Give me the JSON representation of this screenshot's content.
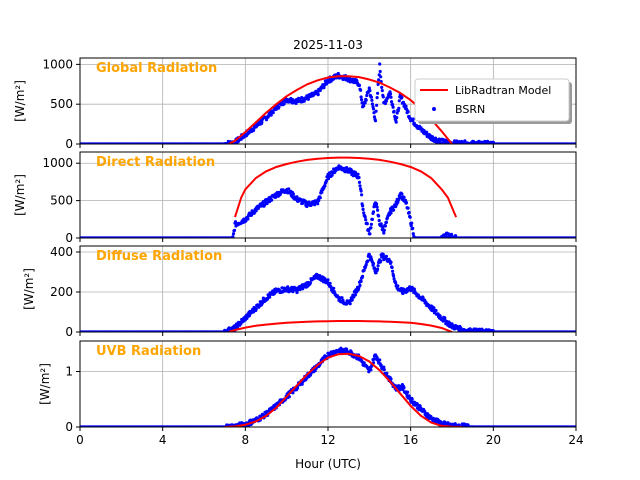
{
  "chart_data": {
    "type": "line",
    "title": "2025-11-03",
    "xlabel": "Hour (UTC)",
    "xlim": [
      0,
      24
    ],
    "xticks": [
      0,
      4,
      8,
      12,
      16,
      20,
      24
    ],
    "x_tick_labels": [
      "0",
      "4",
      "8",
      "12",
      "16",
      "20",
      "24"
    ],
    "grid": true,
    "legend": {
      "position": "top-right",
      "panel": "global",
      "entries": [
        "LibRadtran Model",
        "BSRN"
      ]
    },
    "colors": {
      "model": "#ff0000",
      "bsrn": "#0000ff",
      "panel_label": "#ffa500",
      "grid": "#b0b0b0"
    },
    "panels": [
      {
        "id": "global",
        "label": "Global Radiation",
        "ylabel": "[W/m²]",
        "ylim": [
          0,
          1080
        ],
        "yticks": [
          0,
          500,
          1000
        ],
        "y_tick_labels": [
          "0",
          "500",
          "1000"
        ],
        "model": {
          "name": "LibRadtran Model",
          "x": [
            7.2,
            7.5,
            8,
            8.5,
            9,
            9.5,
            10,
            10.5,
            11,
            11.5,
            12,
            12.5,
            13,
            13.5,
            14,
            14.5,
            15,
            15.5,
            16,
            16.5,
            17,
            17.5,
            18
          ],
          "y": [
            0,
            40,
            150,
            270,
            390,
            500,
            600,
            680,
            750,
            800,
            835,
            850,
            850,
            840,
            810,
            770,
            710,
            640,
            550,
            440,
            310,
            160,
            0
          ]
        },
        "bsrn": {
          "name": "BSRN",
          "x": [
            0,
            7,
            7.5,
            8,
            8.5,
            9,
            9.5,
            10,
            10.5,
            11,
            11.5,
            12,
            12.5,
            13,
            13.5,
            13.7,
            14,
            14.3,
            14.5,
            14.7,
            15,
            15.3,
            15.5,
            16,
            16.5,
            17,
            17.5,
            18,
            19,
            20,
            21,
            24
          ],
          "y": [
            0,
            0,
            20,
            120,
            220,
            330,
            460,
            560,
            540,
            580,
            640,
            800,
            860,
            820,
            760,
            450,
            700,
            300,
            980,
            500,
            650,
            280,
            600,
            320,
            180,
            80,
            30,
            10,
            5,
            0,
            0,
            0
          ]
        }
      },
      {
        "id": "direct",
        "label": "Direct Radiation",
        "ylabel": "[W/m²]",
        "ylim": [
          0,
          1150
        ],
        "yticks": [
          0,
          500,
          1000
        ],
        "y_tick_labels": [
          "0",
          "500",
          "1000"
        ],
        "model": {
          "name": "LibRadtran Model",
          "x": [
            7.5,
            7.8,
            8,
            8.5,
            9,
            9.5,
            10,
            10.5,
            11,
            11.5,
            12,
            12.5,
            13,
            13.5,
            14,
            14.5,
            15,
            15.5,
            16,
            16.5,
            17,
            17.5,
            17.8,
            18.2
          ],
          "y": [
            280,
            540,
            650,
            800,
            890,
            950,
            990,
            1020,
            1045,
            1060,
            1070,
            1075,
            1075,
            1070,
            1060,
            1045,
            1020,
            990,
            950,
            890,
            800,
            650,
            540,
            280
          ]
        },
        "bsrn": {
          "name": "BSRN",
          "x": [
            0,
            7.4,
            7.5,
            8,
            8.5,
            9,
            9.5,
            10,
            10.5,
            11,
            11.5,
            12,
            12.5,
            13,
            13.5,
            13.7,
            14,
            14.3,
            14.5,
            14.7,
            15,
            15.3,
            15.5,
            15.8,
            16.2,
            17,
            17.5,
            17.8,
            18.2,
            24
          ],
          "y": [
            0,
            0,
            180,
            250,
            380,
            480,
            580,
            650,
            520,
            450,
            480,
            820,
            950,
            900,
            820,
            380,
            50,
            500,
            200,
            100,
            350,
            450,
            600,
            450,
            0,
            0,
            0,
            40,
            0,
            0
          ]
        }
      },
      {
        "id": "diffuse",
        "label": "Diffuse Radiation",
        "ylabel": "[W/m²]",
        "ylim": [
          0,
          430
        ],
        "yticks": [
          0,
          200,
          400
        ],
        "y_tick_labels": [
          "0",
          "200",
          "400"
        ],
        "model": {
          "name": "LibRadtran Model",
          "x": [
            7.2,
            7.5,
            8,
            8.5,
            9,
            9.5,
            10,
            10.5,
            11,
            11.5,
            12,
            12.5,
            13,
            13.5,
            14,
            14.5,
            15,
            15.5,
            16,
            16.5,
            17,
            17.5,
            18
          ],
          "y": [
            0,
            10,
            22,
            31,
            37,
            42,
            46,
            49,
            51,
            53,
            54,
            55,
            55,
            55,
            54,
            53,
            51,
            49,
            46,
            40,
            32,
            20,
            0
          ]
        },
        "bsrn": {
          "name": "BSRN",
          "x": [
            0,
            7,
            7.5,
            8,
            8.5,
            9,
            9.5,
            10,
            10.5,
            11,
            11.5,
            12,
            12.5,
            13,
            13.5,
            14,
            14.3,
            14.6,
            15,
            15.3,
            15.6,
            16,
            16.5,
            17,
            17.5,
            18,
            18.5,
            19,
            20,
            21,
            24
          ],
          "y": [
            0,
            0,
            20,
            70,
            120,
            170,
            205,
            215,
            210,
            240,
            280,
            250,
            170,
            140,
            230,
            390,
            300,
            380,
            360,
            230,
            200,
            220,
            170,
            120,
            70,
            30,
            10,
            3,
            0,
            0,
            0
          ]
        }
      },
      {
        "id": "uvb",
        "label": "UVB Radiation",
        "ylabel": "[W/m²]",
        "ylim": [
          0,
          1.55
        ],
        "yticks": [
          0,
          1
        ],
        "y_tick_labels": [
          "0",
          "1"
        ],
        "model": {
          "name": "LibRadtran Model",
          "x": [
            7,
            7.5,
            8,
            8.5,
            9,
            9.5,
            10,
            10.5,
            11,
            11.5,
            12,
            12.5,
            13,
            13.5,
            14,
            14.5,
            15,
            15.5,
            16,
            16.5,
            17,
            17.5,
            18,
            18.5
          ],
          "y": [
            0,
            0.01,
            0.04,
            0.1,
            0.2,
            0.35,
            0.55,
            0.75,
            0.95,
            1.12,
            1.25,
            1.31,
            1.32,
            1.28,
            1.18,
            1.02,
            0.82,
            0.6,
            0.38,
            0.2,
            0.08,
            0.02,
            0.005,
            0
          ]
        },
        "bsrn": {
          "name": "BSRN",
          "x": [
            0,
            7,
            7.5,
            8,
            8.5,
            9,
            9.5,
            10,
            10.5,
            11,
            11.5,
            12,
            12.5,
            13,
            13.5,
            14,
            14.3,
            14.6,
            15,
            15.3,
            15.6,
            16,
            16.5,
            17,
            17.5,
            18,
            18.5,
            19,
            24
          ],
          "y": [
            0,
            0,
            0.01,
            0.05,
            0.12,
            0.23,
            0.38,
            0.55,
            0.72,
            0.92,
            1.1,
            1.3,
            1.38,
            1.36,
            1.25,
            1.0,
            1.3,
            1.1,
            0.85,
            0.7,
            0.72,
            0.5,
            0.32,
            0.15,
            0.06,
            0.02,
            0.01,
            0,
            0
          ]
        }
      }
    ]
  }
}
